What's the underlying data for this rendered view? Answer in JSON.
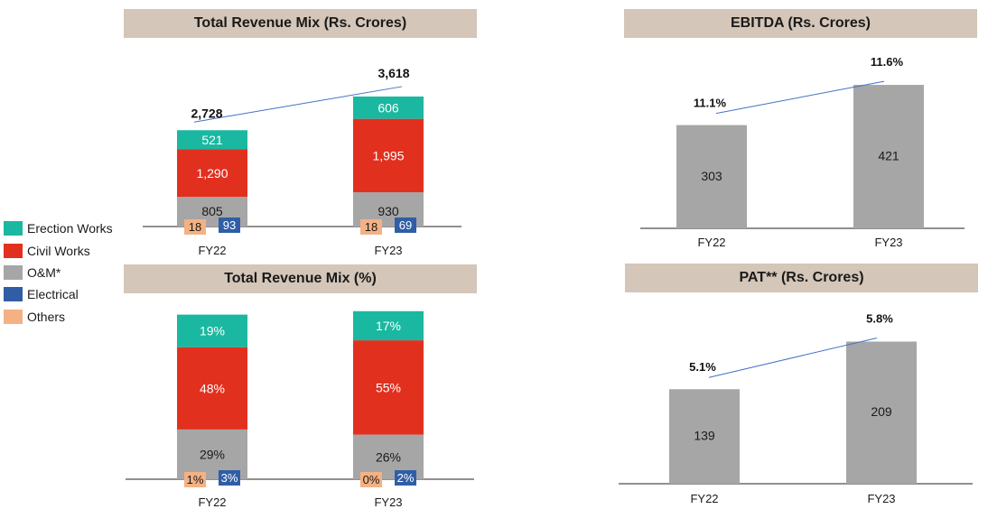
{
  "colors": {
    "erection": "#1ab8a0",
    "civil": "#e2301f",
    "om": "#a6a6a6",
    "electrical": "#2f5ea6",
    "others": "#f4b183",
    "header_bg": "#d4c6b8"
  },
  "legend": {
    "items": [
      {
        "label": "Erection Works",
        "color": "#1ab8a0"
      },
      {
        "label": "Civil Works",
        "color": "#e2301f"
      },
      {
        "label": "O&M*",
        "color": "#a6a6a6"
      },
      {
        "label": "Electrical",
        "color": "#2f5ea6"
      },
      {
        "label": "Others",
        "color": "#f4b183"
      }
    ]
  },
  "chart_data": [
    {
      "type": "bar",
      "stacked": true,
      "title": "Total Revenue Mix (Rs. Crores)",
      "categories": [
        "FY22",
        "FY23"
      ],
      "series": [
        {
          "name": "Others",
          "values": [
            18,
            18
          ],
          "labels": [
            "18",
            "18"
          ]
        },
        {
          "name": "Electrical",
          "values": [
            93,
            69
          ],
          "labels": [
            "93",
            "69"
          ]
        },
        {
          "name": "O&M*",
          "values": [
            805,
            930
          ],
          "labels": [
            "805",
            "930"
          ]
        },
        {
          "name": "Civil Works",
          "values": [
            1290,
            1995
          ],
          "labels": [
            "1,290",
            "1,995"
          ]
        },
        {
          "name": "Erection Works",
          "values": [
            521,
            606
          ],
          "labels": [
            "521",
            "606"
          ]
        }
      ],
      "totals": [
        2728,
        3618
      ],
      "total_labels": [
        "2,728",
        "3,618"
      ],
      "trend_line": true
    },
    {
      "type": "bar",
      "title": "EBITDA (Rs. Crores)",
      "categories": [
        "FY22",
        "FY23"
      ],
      "values": [
        303,
        421
      ],
      "value_labels": [
        "303",
        "421"
      ],
      "margins": [
        "11.1%",
        "11.6%"
      ],
      "trend_line": true
    },
    {
      "type": "bar",
      "stacked": true,
      "title": "Total Revenue Mix (%)",
      "categories": [
        "FY22",
        "FY23"
      ],
      "series": [
        {
          "name": "Others",
          "values": [
            1,
            0
          ],
          "labels": [
            "1%",
            "0%"
          ]
        },
        {
          "name": "Electrical",
          "values": [
            3,
            2
          ],
          "labels": [
            "3%",
            "2%"
          ]
        },
        {
          "name": "O&M*",
          "values": [
            29,
            26
          ],
          "labels": [
            "29%",
            "26%"
          ]
        },
        {
          "name": "Civil Works",
          "values": [
            48,
            55
          ],
          "labels": [
            "48%",
            "55%"
          ]
        },
        {
          "name": "Erection Works",
          "values": [
            19,
            17
          ],
          "labels": [
            "19%",
            "17%"
          ]
        }
      ]
    },
    {
      "type": "bar",
      "title": "PAT** (Rs. Crores)",
      "categories": [
        "FY22",
        "FY23"
      ],
      "values": [
        139,
        209
      ],
      "value_labels": [
        "139",
        "209"
      ],
      "margins": [
        "5.1%",
        "5.8%"
      ],
      "trend_line": true
    }
  ]
}
